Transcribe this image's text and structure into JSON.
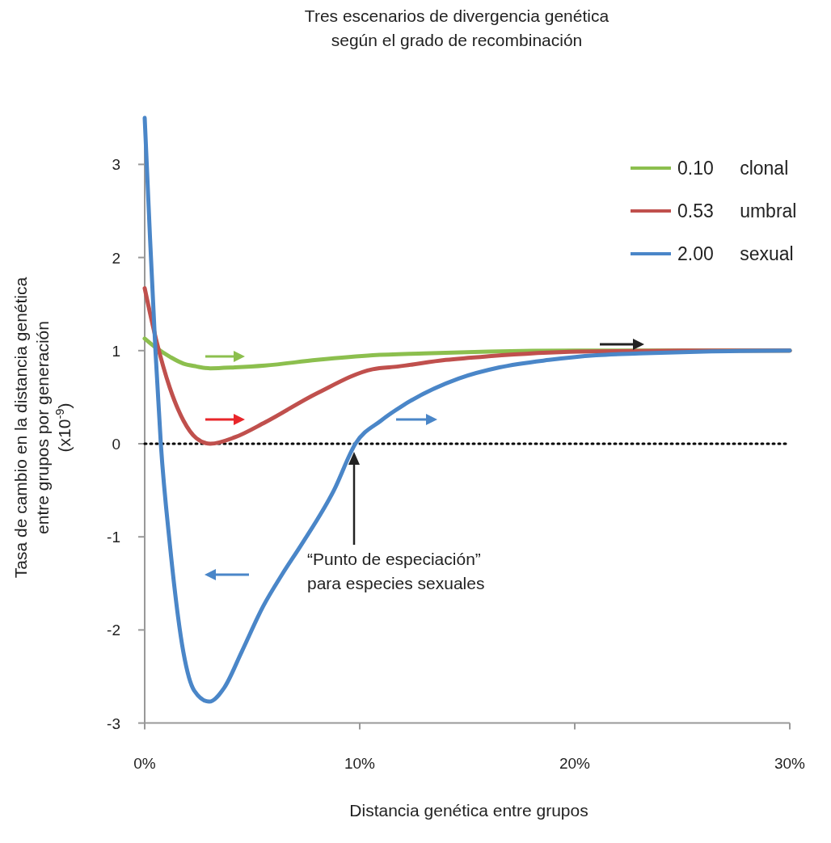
{
  "chart_data": {
    "type": "line",
    "title": "Tres escenarios de divergencia genética\nsegún el grado de recombinación",
    "xlabel": "Distancia genética entre grupos",
    "ylabel": "Tasa de cambio en la distancia genética\nentre grupos por generación\n(x10$^{-9}$)",
    "xlim": [
      0,
      30
    ],
    "xticks": [
      {
        "value": 0,
        "label": "0%"
      },
      {
        "value": 10,
        "label": "10%"
      },
      {
        "value": 20,
        "label": "20%"
      },
      {
        "value": 30,
        "label": "30%"
      }
    ],
    "ylim": [
      -3,
      3.5
    ],
    "yticks": [
      -3,
      -2,
      -1,
      0,
      1,
      2,
      3
    ],
    "grid": false,
    "legend": "top right",
    "marker": "none",
    "line_style": "solid",
    "series": [
      {
        "name": "0.10 clonal",
        "color": "#8cbf4e",
        "x": [
          0,
          0.53,
          1.2,
          1.8,
          2.4,
          3.05,
          4.2,
          5.6,
          8,
          10.6,
          13,
          16,
          20,
          25,
          30
        ],
        "values": [
          1.13,
          1.03,
          0.93,
          0.86,
          0.83,
          0.81,
          0.82,
          0.84,
          0.9,
          0.95,
          0.97,
          0.99,
          1.0,
          1.0,
          1.0
        ]
      },
      {
        "name": "0.53 umbral",
        "color": "#c0504d",
        "x": [
          0,
          0.53,
          1.17,
          1.8,
          2.4,
          3.05,
          4.2,
          5.6,
          8,
          10.6,
          11.8,
          14,
          16,
          20.2,
          25,
          30
        ],
        "values": [
          1.67,
          1.12,
          0.6,
          0.25,
          0.06,
          0.0,
          0.07,
          0.23,
          0.54,
          0.8,
          0.83,
          0.9,
          0.94,
          0.99,
          1.0,
          1.0
        ]
      },
      {
        "name": "2.00 sexual",
        "color": "#4a86c8",
        "x": [
          0,
          0.25,
          0.5,
          0.75,
          1.17,
          1.8,
          2.3,
          3.0,
          3.7,
          4.5,
          5.5,
          6.4,
          7.3,
          8.8,
          9.8,
          11,
          12,
          14.6,
          16.5,
          18.8,
          21,
          23,
          26,
          30
        ],
        "values": [
          3.5,
          2.2,
          1.0,
          0.0,
          -1.08,
          -2.24,
          -2.65,
          -2.77,
          -2.62,
          -2.24,
          -1.75,
          -1.4,
          -1.08,
          -0.5,
          0.0,
          0.25,
          0.41,
          0.7,
          0.82,
          0.9,
          0.95,
          0.97,
          0.99,
          1.0
        ]
      }
    ],
    "ref_lines": [
      {
        "axis": "y",
        "value": 0,
        "color": "#000000",
        "line_style": "dotted"
      }
    ],
    "annotations": [
      "“Punto de especiación”\npara especies sexuales"
    ]
  }
}
